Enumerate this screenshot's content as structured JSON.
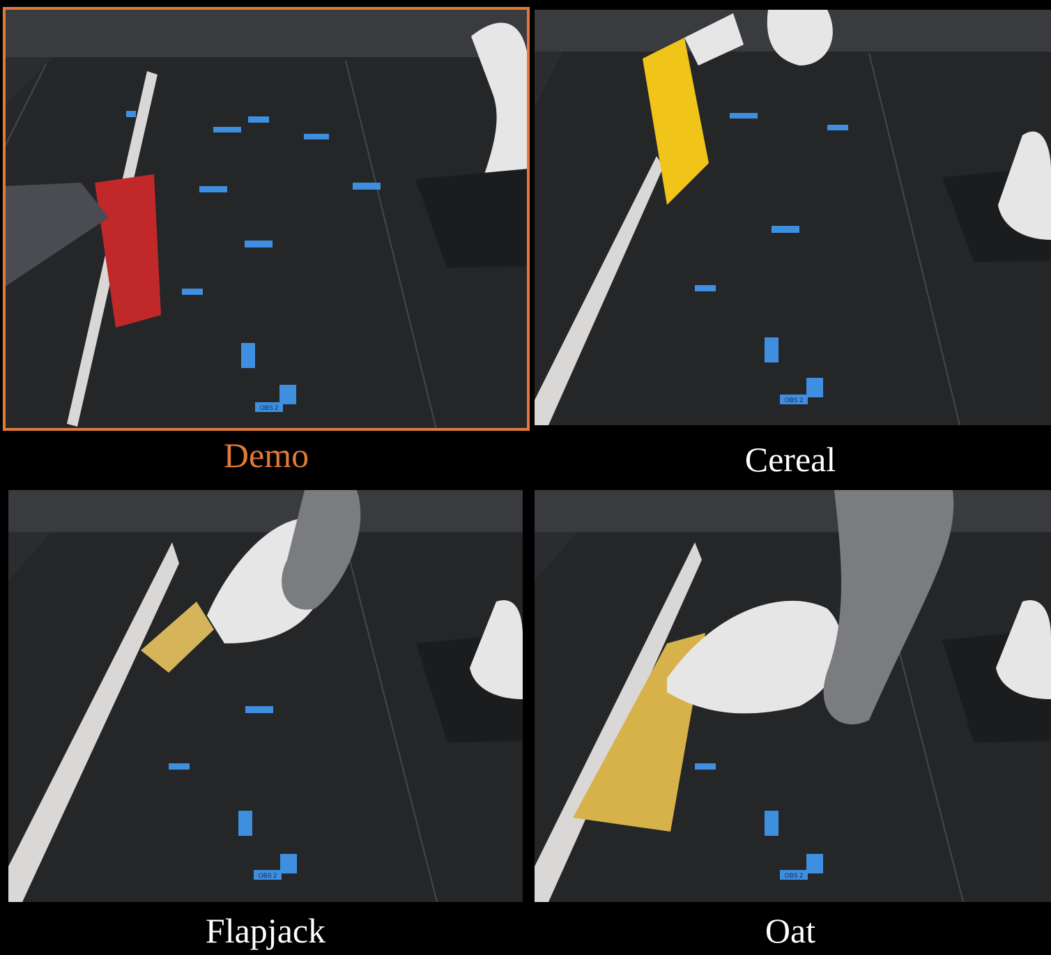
{
  "panels": [
    {
      "caption": "Demo",
      "color": "#e07a3a",
      "highlighted": true
    },
    {
      "caption": "Cereal",
      "color": "#ffffff",
      "highlighted": false
    },
    {
      "caption": "Flapjack",
      "color": "#ffffff",
      "highlighted": false
    },
    {
      "caption": "Oat",
      "color": "#ffffff",
      "highlighted": false
    }
  ],
  "tape_labels": {
    "obs": "OBS 2"
  }
}
